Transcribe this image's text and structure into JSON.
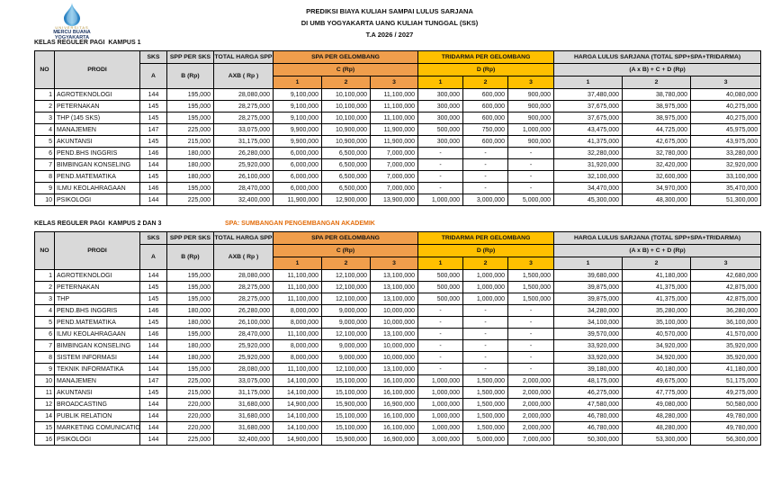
{
  "colors": {
    "spa_orange": "#F09E4C",
    "tridarma_gold": "#FFC000",
    "header_gray": "#D9D9D9",
    "note_orange": "#E36C0A",
    "logo_navy": "#1F3864"
  },
  "logo": {
    "line1": "UNIVERSITAS",
    "line2": "MERCU BUANA",
    "line3": "YOGYAKARTA"
  },
  "header": {
    "title_line1": "PREDIKSI BIAYA KULIAH SAMPAI LULUS SARJANA",
    "title_line2": "DI UMB YOGYAKARTA UANG KULIAH TUNGGAL (SKS)",
    "title_line3": "T.A 2026 / 2027"
  },
  "columns": {
    "no": "NO",
    "prodi": "PRODI",
    "sks": "SKS",
    "sks_sub": "A",
    "spp": "SPP PER SKS",
    "spp_sub": "B (Rp)",
    "total": "TOTAL HARGA SPP",
    "total_sub": "AXB ( Rp )",
    "spa": "SPA PER GELOMBANG",
    "spa_sub": "C (Rp)",
    "tridarma": "TRIDARMA PER GELOMBANG",
    "tridarma_sub": "D (Rp)",
    "harga": "HARGA LULUS SARJANA (TOTAL SPP+SPA+TRIDARMA)",
    "harga_sub": "(A x B) + C + D (Rp)",
    "wave1": "1",
    "wave2": "2",
    "wave3": "3"
  },
  "tables": [
    {
      "section_title": "KELAS REGULER PAGI  KAMPUS 1",
      "note": "",
      "rows": [
        [
          "1",
          "AGROTEKNOLOGI",
          "144",
          "195,000",
          "28,080,000",
          "9,100,000",
          "10,100,000",
          "11,100,000",
          "300,000",
          "600,000",
          "900,000",
          "37,480,000",
          "38,780,000",
          "40,080,000"
        ],
        [
          "2",
          "PETERNAKAN",
          "145",
          "195,000",
          "28,275,000",
          "9,100,000",
          "10,100,000",
          "11,100,000",
          "300,000",
          "600,000",
          "900,000",
          "37,675,000",
          "38,975,000",
          "40,275,000"
        ],
        [
          "3",
          "THP (145 SKS)",
          "145",
          "195,000",
          "28,275,000",
          "9,100,000",
          "10,100,000",
          "11,100,000",
          "300,000",
          "600,000",
          "900,000",
          "37,675,000",
          "38,975,000",
          "40,275,000"
        ],
        [
          "4",
          "MANAJEMEN",
          "147",
          "225,000",
          "33,075,000",
          "9,900,000",
          "10,900,000",
          "11,900,000",
          "500,000",
          "750,000",
          "1,000,000",
          "43,475,000",
          "44,725,000",
          "45,975,000"
        ],
        [
          "5",
          "AKUNTANSI",
          "145",
          "215,000",
          "31,175,000",
          "9,900,000",
          "10,900,000",
          "11,900,000",
          "300,000",
          "600,000",
          "900,000",
          "41,375,000",
          "42,675,000",
          "43,975,000"
        ],
        [
          "6",
          "PEND.BHS INGGRIS",
          "146",
          "180,000",
          "26,280,000",
          "6,000,000",
          "6,500,000",
          "7,000,000",
          "-",
          "-",
          "-",
          "32,280,000",
          "32,780,000",
          "33,280,000"
        ],
        [
          "7",
          "BIMBINGAN KONSELING",
          "144",
          "180,000",
          "25,920,000",
          "6,000,000",
          "6,500,000",
          "7,000,000",
          "-",
          "-",
          "-",
          "31,920,000",
          "32,420,000",
          "32,920,000"
        ],
        [
          "8",
          "PEND.MATEMATIKA",
          "145",
          "180,000",
          "26,100,000",
          "6,000,000",
          "6,500,000",
          "7,000,000",
          "-",
          "-",
          "-",
          "32,100,000",
          "32,600,000",
          "33,100,000"
        ],
        [
          "9",
          "ILMU KEOLAHRAGAAN",
          "146",
          "195,000",
          "28,470,000",
          "6,000,000",
          "6,500,000",
          "7,000,000",
          "-",
          "-",
          "-",
          "34,470,000",
          "34,970,000",
          "35,470,000"
        ],
        [
          "10",
          "PSIKOLOGI",
          "144",
          "225,000",
          "32,400,000",
          "11,900,000",
          "12,900,000",
          "13,900,000",
          "1,000,000",
          "3,000,000",
          "5,000,000",
          "45,300,000",
          "48,300,000",
          "51,300,000"
        ]
      ]
    },
    {
      "section_title": "KELAS REGULER PAGI  KAMPUS 2 DAN 3",
      "note": "SPA: SUMBANGAN PENGEMBANGAN AKADEMIK",
      "rows": [
        [
          "1",
          "AGROTEKNOLOGI",
          "144",
          "195,000",
          "28,080,000",
          "11,100,000",
          "12,100,000",
          "13,100,000",
          "500,000",
          "1,000,000",
          "1,500,000",
          "39,680,000",
          "41,180,000",
          "42,680,000"
        ],
        [
          "2",
          "PETERNAKAN",
          "145",
          "195,000",
          "28,275,000",
          "11,100,000",
          "12,100,000",
          "13,100,000",
          "500,000",
          "1,000,000",
          "1,500,000",
          "39,875,000",
          "41,375,000",
          "42,875,000"
        ],
        [
          "3",
          "THP",
          "145",
          "195,000",
          "28,275,000",
          "11,100,000",
          "12,100,000",
          "13,100,000",
          "500,000",
          "1,000,000",
          "1,500,000",
          "39,875,000",
          "41,375,000",
          "42,875,000"
        ],
        [
          "4",
          "PEND.BHS INGGRIS",
          "146",
          "180,000",
          "26,280,000",
          "8,000,000",
          "9,000,000",
          "10,000,000",
          "-",
          "-",
          "-",
          "34,280,000",
          "35,280,000",
          "36,280,000"
        ],
        [
          "5",
          "PEND.MATEMATIKA",
          "145",
          "180,000",
          "26,100,000",
          "8,000,000",
          "9,000,000",
          "10,000,000",
          "-",
          "-",
          "-",
          "34,100,000",
          "35,100,000",
          "36,100,000"
        ],
        [
          "6",
          "ILMU KEOLAHRAGAAN",
          "146",
          "195,000",
          "28,470,000",
          "11,100,000",
          "12,100,000",
          "13,100,000",
          "-",
          "-",
          "-",
          "39,570,000",
          "40,570,000",
          "41,570,000"
        ],
        [
          "7",
          "BIMBINGAN KONSELING",
          "144",
          "180,000",
          "25,920,000",
          "8,000,000",
          "9,000,000",
          "10,000,000",
          "-",
          "-",
          "-",
          "33,920,000",
          "34,920,000",
          "35,920,000"
        ],
        [
          "8",
          "SISTEM INFORMASI",
          "144",
          "180,000",
          "25,920,000",
          "8,000,000",
          "9,000,000",
          "10,000,000",
          "-",
          "-",
          "-",
          "33,920,000",
          "34,920,000",
          "35,920,000"
        ],
        [
          "9",
          "TEKNIK INFORMATIKA",
          "144",
          "195,000",
          "28,080,000",
          "11,100,000",
          "12,100,000",
          "13,100,000",
          "-",
          "-",
          "-",
          "39,180,000",
          "40,180,000",
          "41,180,000"
        ],
        [
          "10",
          "MANAJEMEN",
          "147",
          "225,000",
          "33,075,000",
          "14,100,000",
          "15,100,000",
          "16,100,000",
          "1,000,000",
          "1,500,000",
          "2,000,000",
          "48,175,000",
          "49,675,000",
          "51,175,000"
        ],
        [
          "11",
          "AKUNTANSI",
          "145",
          "215,000",
          "31,175,000",
          "14,100,000",
          "15,100,000",
          "16,100,000",
          "1,000,000",
          "1,500,000",
          "2,000,000",
          "46,275,000",
          "47,775,000",
          "49,275,000"
        ],
        [
          "12",
          "BROADCASTING",
          "144",
          "220,000",
          "31,680,000",
          "14,900,000",
          "15,900,000",
          "16,900,000",
          "1,000,000",
          "1,500,000",
          "2,000,000",
          "47,580,000",
          "49,080,000",
          "50,580,000"
        ],
        [
          "14",
          "PUBLIK RELATION",
          "144",
          "220,000",
          "31,680,000",
          "14,100,000",
          "15,100,000",
          "16,100,000",
          "1,000,000",
          "1,500,000",
          "2,000,000",
          "46,780,000",
          "48,280,000",
          "49,780,000"
        ],
        [
          "15",
          "MARKETING COMUNICATION",
          "144",
          "220,000",
          "31,680,000",
          "14,100,000",
          "15,100,000",
          "16,100,000",
          "1,000,000",
          "1,500,000",
          "2,000,000",
          "46,780,000",
          "48,280,000",
          "49,780,000"
        ],
        [
          "16",
          "PSIKOLOGI",
          "144",
          "225,000",
          "32,400,000",
          "14,900,000",
          "15,900,000",
          "16,900,000",
          "3,000,000",
          "5,000,000",
          "7,000,000",
          "50,300,000",
          "53,300,000",
          "56,300,000"
        ]
      ]
    }
  ]
}
